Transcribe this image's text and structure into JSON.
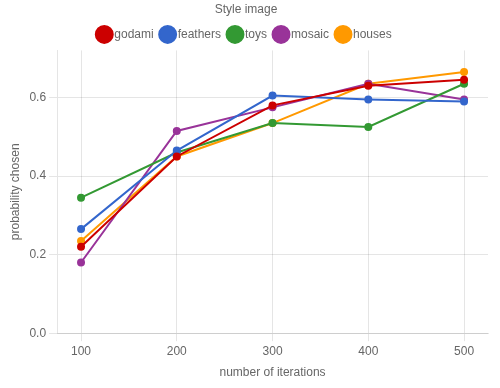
{
  "chart_data": {
    "type": "line",
    "xlabel": "number of iterations",
    "ylabel": "probability chosen",
    "legend_title": "Style image",
    "legend": "top",
    "grid": true,
    "marker": "circle",
    "x": [
      100,
      200,
      300,
      400,
      500
    ],
    "series": [
      {
        "name": "godami",
        "color": "#cc0000",
        "values": [
          0.22,
          0.45,
          0.58,
          0.63,
          0.645
        ]
      },
      {
        "name": "feathers",
        "color": "#3366cc",
        "values": [
          0.265,
          0.465,
          0.605,
          0.595,
          0.59
        ]
      },
      {
        "name": "toys",
        "color": "#339933",
        "values": [
          0.345,
          0.46,
          0.535,
          0.525,
          0.635
        ]
      },
      {
        "name": "mosaic",
        "color": "#993399",
        "values": [
          0.18,
          0.515,
          0.575,
          0.635,
          0.595
        ]
      },
      {
        "name": "houses",
        "color": "#ff9900",
        "values": [
          0.235,
          0.45,
          0.535,
          0.635,
          0.665
        ]
      }
    ],
    "xlim": [
      75,
      525
    ],
    "xticks": [
      100,
      200,
      300,
      400,
      500
    ],
    "ylim": [
      0.0,
      0.72
    ],
    "yticks": [
      {
        "value": 0.0,
        "label": "0.0"
      },
      0.2,
      0.4,
      0.6
    ]
  }
}
